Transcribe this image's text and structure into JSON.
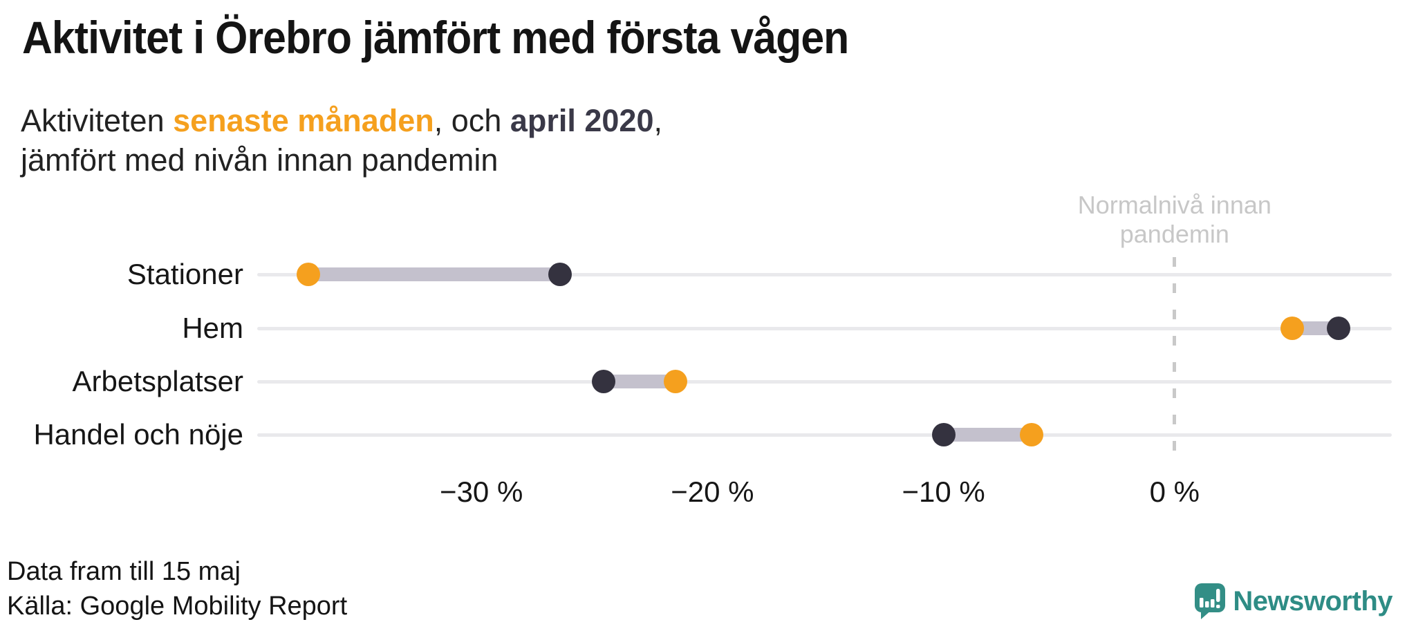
{
  "title": "Aktivitet i Örebro jämfört med första vågen",
  "subtitle": {
    "parts": [
      {
        "text": "Aktiviteten ",
        "style": "normal"
      },
      {
        "text": "senaste månaden",
        "style": "hl-recent"
      },
      {
        "text": ", och ",
        "style": "normal"
      },
      {
        "text": "april 2020",
        "style": "hl-april"
      },
      {
        "text": ",",
        "style": "normal"
      }
    ],
    "line2": "jämfört med nivån innan pandemin"
  },
  "colors": {
    "accent_orange": "#F5A01E",
    "accent_dark": "#34323F",
    "connector": "#C4C1CD",
    "gridline": "#E9E9EC",
    "muted_gray": "#C7C7C7",
    "brand_teal": "#2E8C85"
  },
  "chart_data": {
    "type": "dumbbell",
    "title": "Aktivitet i Örebro jämfört med första vågen",
    "categories": [
      "Stationer",
      "Hem",
      "Arbetsplatser",
      "Handel och nöje"
    ],
    "series": [
      {
        "name": "senaste månaden",
        "color": "#F5A01E",
        "values": [
          -37.5,
          5.1,
          -21.6,
          -6.2
        ]
      },
      {
        "name": "april 2020",
        "color": "#34323F",
        "values": [
          -26.6,
          7.1,
          -24.7,
          -10
        ]
      }
    ],
    "unit": "%",
    "xlim": [
      -39.7,
      9.4
    ],
    "xticks": [
      {
        "value": -30,
        "label": "−30 %"
      },
      {
        "value": -20,
        "label": "−20 %"
      },
      {
        "value": -10,
        "label": "−10 %"
      },
      {
        "value": 0,
        "label": "0 %"
      }
    ],
    "reference_line": {
      "value": 0,
      "label_lines": [
        "Normalnivå innan",
        "pandemin"
      ]
    },
    "grid": true,
    "legend_position": "in-subtitle"
  },
  "footer": {
    "note": "Data fram till 15 maj",
    "source": "Källa: Google Mobility Report"
  },
  "branding": {
    "name": "Newsworthy",
    "icon": "newsworthy-logo-icon"
  }
}
